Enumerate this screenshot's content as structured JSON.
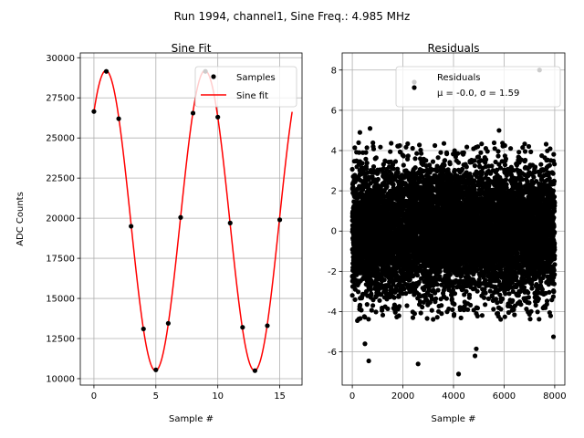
{
  "figure": {
    "suptitle": "Run 1994, channel1, Sine Freq.: 4.985 MHz"
  },
  "colors": {
    "fit_line": "#ff0000",
    "markers": "#000000",
    "grid": "#b0b0b0"
  },
  "chart_data": [
    {
      "type": "scatter",
      "title": "Sine Fit",
      "xlabel": "Sample #",
      "ylabel": "ADC Counts",
      "xlim": [
        -1.1,
        16.8
      ],
      "ylim": [
        9600,
        30300
      ],
      "xticks": [
        0,
        5,
        10,
        15
      ],
      "yticks": [
        10000,
        12500,
        15000,
        17500,
        20000,
        22500,
        25000,
        27500,
        30000
      ],
      "grid": true,
      "legend": {
        "position": "top-right",
        "entries": [
          "Samples",
          "Sine fit"
        ]
      },
      "series": [
        {
          "name": "Samples",
          "kind": "points",
          "x": [
            0,
            1,
            2,
            3,
            4,
            5,
            6,
            7,
            8,
            9,
            10,
            11,
            12,
            13,
            14,
            15
          ],
          "y": [
            26650,
            29150,
            26200,
            19500,
            13100,
            10550,
            13450,
            20050,
            26550,
            29150,
            26300,
            19700,
            13200,
            10500,
            13300,
            19900
          ]
        },
        {
          "name": "Sine fit",
          "kind": "line",
          "model": {
            "mean": 19850,
            "amplitude": 9350,
            "period": 8.0,
            "phase": 0.811,
            "x_start": 0,
            "x_end": 16
          }
        }
      ]
    },
    {
      "type": "scatter",
      "title": "Residuals",
      "xlabel": "Sample #",
      "ylabel": "",
      "xlim": [
        -400,
        8400
      ],
      "ylim": [
        -7.65,
        8.85
      ],
      "xticks": [
        0,
        2000,
        4000,
        6000,
        8000
      ],
      "yticks": [
        -6,
        -4,
        -2,
        0,
        2,
        4,
        6,
        8
      ],
      "grid": true,
      "legend": {
        "position": "top-right",
        "entries": [
          "Residuals",
          "μ = -0.0, σ = 1.59"
        ]
      },
      "series": [
        {
          "name": "Residuals",
          "kind": "points",
          "n_points": 8000,
          "mean": 0.0,
          "std": 1.59,
          "highlighted_outliers": [
            {
              "x": 7400,
              "y": 8.0
            },
            {
              "x": 2450,
              "y": 7.4
            },
            {
              "x": 700,
              "y": 5.1
            },
            {
              "x": 300,
              "y": 4.9
            },
            {
              "x": 5800,
              "y": 5.0
            },
            {
              "x": 4200,
              "y": -7.1
            },
            {
              "x": 2600,
              "y": -6.6
            },
            {
              "x": 650,
              "y": -6.45
            },
            {
              "x": 4850,
              "y": -6.2
            },
            {
              "x": 500,
              "y": -5.6
            },
            {
              "x": 4900,
              "y": -5.85
            },
            {
              "x": 7950,
              "y": -5.25
            },
            {
              "x": 7800,
              "y": -4.05
            },
            {
              "x": 200,
              "y": -4.45
            }
          ]
        }
      ]
    }
  ]
}
